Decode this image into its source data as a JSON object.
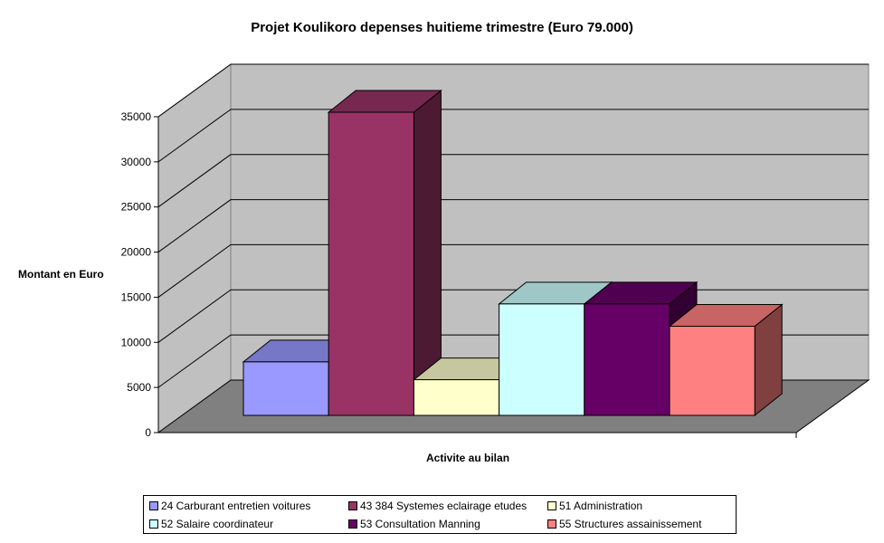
{
  "chart_data": {
    "type": "bar",
    "title": "Projet Koulikoro depenses huitieme trimestre (Euro 79.000)",
    "xlabel": "Activite au bilan",
    "ylabel": "Montant en Euro",
    "ylim": [
      0,
      35000
    ],
    "yticks": [
      "0",
      "5000",
      "10000",
      "15000",
      "20000",
      "25000",
      "30000",
      "35000"
    ],
    "grid": true,
    "three_d": true,
    "legend_position": "bottom",
    "series": [
      {
        "name": "24 Carburant entretien voitures",
        "value": 6000,
        "color": "#9999ff"
      },
      {
        "name": "43 384 Systemes eclairage etudes",
        "value": 34000,
        "color": "#993366"
      },
      {
        "name": "51 Administration",
        "value": 4000,
        "color": "#ffffcc"
      },
      {
        "name": "52 Salaire coordinateur",
        "value": 12500,
        "color": "#ccffff"
      },
      {
        "name": "53 Consultation Manning",
        "value": 12500,
        "color": "#660066"
      },
      {
        "name": "55 Structures assainissement",
        "value": 10000,
        "color": "#ff8080"
      }
    ]
  }
}
